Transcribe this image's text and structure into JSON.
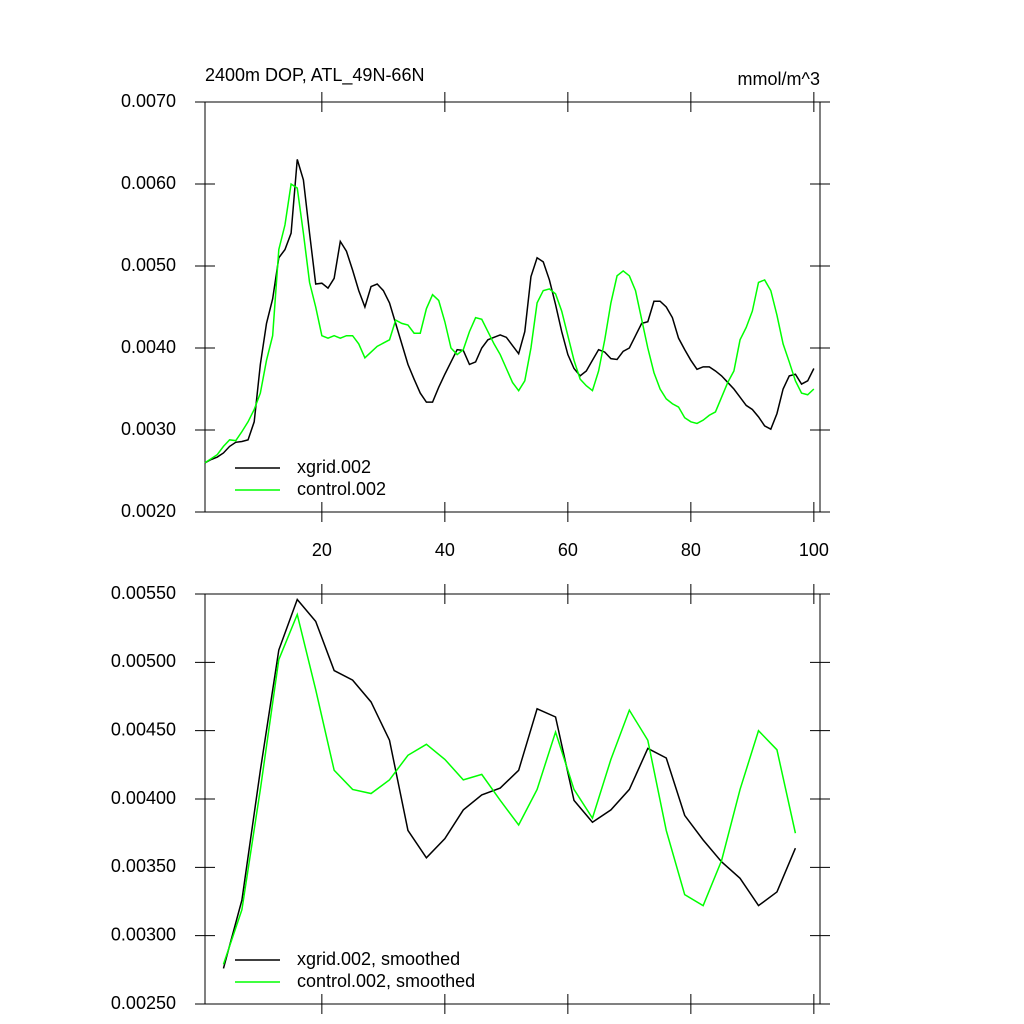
{
  "chart_data": [
    {
      "type": "line",
      "title": "2400m DOP, ATL_49N-66N",
      "units_label": "mmol/m^3",
      "x": [
        1,
        2,
        3,
        4,
        5,
        6,
        7,
        8,
        9,
        10,
        11,
        12,
        13,
        14,
        15,
        16,
        17,
        18,
        19,
        20,
        21,
        22,
        23,
        24,
        25,
        26,
        27,
        28,
        29,
        30,
        31,
        32,
        33,
        34,
        35,
        36,
        37,
        38,
        39,
        40,
        41,
        42,
        43,
        44,
        45,
        46,
        47,
        48,
        49,
        50,
        51,
        52,
        53,
        54,
        55,
        56,
        57,
        58,
        59,
        60,
        61,
        62,
        63,
        64,
        65,
        66,
        67,
        68,
        69,
        70,
        71,
        72,
        73,
        74,
        75,
        76,
        77,
        78,
        79,
        80,
        81,
        82,
        83,
        84,
        85,
        86,
        87,
        88,
        89,
        90,
        91,
        92,
        93,
        94,
        95,
        96,
        97,
        98,
        99,
        100
      ],
      "series": [
        {
          "name": "xgrid.002",
          "color": "#000000",
          "values": [
            0.0026,
            0.00264,
            0.00267,
            0.00272,
            0.0028,
            0.00285,
            0.00286,
            0.00288,
            0.0031,
            0.0038,
            0.0043,
            0.0046,
            0.0051,
            0.0052,
            0.0054,
            0.0063,
            0.00605,
            0.0054,
            0.00478,
            0.00479,
            0.00473,
            0.00485,
            0.0053,
            0.00518,
            0.00495,
            0.0047,
            0.0045,
            0.00475,
            0.00478,
            0.0047,
            0.00455,
            0.0043,
            0.00405,
            0.0038,
            0.00362,
            0.00345,
            0.00334,
            0.00334,
            0.00352,
            0.00368,
            0.00383,
            0.00398,
            0.00397,
            0.0038,
            0.00383,
            0.004,
            0.0041,
            0.00413,
            0.00416,
            0.00413,
            0.00403,
            0.00393,
            0.0042,
            0.00487,
            0.0051,
            0.00505,
            0.00483,
            0.00453,
            0.0042,
            0.00392,
            0.00375,
            0.00366,
            0.00372,
            0.00385,
            0.00398,
            0.00395,
            0.00387,
            0.00386,
            0.00396,
            0.004,
            0.00415,
            0.0043,
            0.00432,
            0.00457,
            0.00457,
            0.0045,
            0.00437,
            0.00412,
            0.00398,
            0.00385,
            0.00374,
            0.00377,
            0.00377,
            0.00372,
            0.00366,
            0.00358,
            0.0035,
            0.0034,
            0.0033,
            0.00325,
            0.00316,
            0.00305,
            0.00301,
            0.0032,
            0.0035,
            0.00366,
            0.00368,
            0.00356,
            0.0036,
            0.00375
          ]
        },
        {
          "name": "control.002",
          "color": "#00ff00",
          "values": [
            0.0026,
            0.00265,
            0.0027,
            0.0028,
            0.00288,
            0.00287,
            0.00298,
            0.0031,
            0.00325,
            0.00345,
            0.00385,
            0.00415,
            0.0052,
            0.0055,
            0.006,
            0.00595,
            0.0054,
            0.0048,
            0.0045,
            0.00415,
            0.00412,
            0.00415,
            0.00412,
            0.00415,
            0.00415,
            0.00405,
            0.00388,
            0.00395,
            0.00402,
            0.00406,
            0.0041,
            0.00434,
            0.0043,
            0.00428,
            0.00418,
            0.00418,
            0.00448,
            0.00465,
            0.00458,
            0.00432,
            0.004,
            0.00392,
            0.00398,
            0.0042,
            0.00437,
            0.00435,
            0.0042,
            0.00405,
            0.00392,
            0.00375,
            0.00358,
            0.00348,
            0.0036,
            0.004,
            0.00455,
            0.0047,
            0.00472,
            0.00466,
            0.00445,
            0.00415,
            0.00385,
            0.00362,
            0.00354,
            0.00348,
            0.00372,
            0.0041,
            0.00455,
            0.00488,
            0.00494,
            0.00488,
            0.0047,
            0.00435,
            0.004,
            0.0037,
            0.0035,
            0.00338,
            0.00332,
            0.00328,
            0.00315,
            0.0031,
            0.00308,
            0.00312,
            0.00318,
            0.00322,
            0.0034,
            0.00358,
            0.00372,
            0.0041,
            0.00425,
            0.00445,
            0.0048,
            0.00483,
            0.0047,
            0.0044,
            0.00405,
            0.00383,
            0.0036,
            0.00345,
            0.00343,
            0.0035
          ]
        }
      ],
      "xlim": [
        1,
        101
      ],
      "xticks": [
        20,
        40,
        60,
        80,
        100
      ],
      "show_xtick_labels": true,
      "ylim": [
        0.002,
        0.007
      ],
      "yticks": [
        {
          "value": 0.002,
          "label": "0.0020"
        },
        {
          "value": 0.003,
          "label": "0.0030"
        },
        {
          "value": 0.004,
          "label": "0.0040"
        },
        {
          "value": 0.005,
          "label": "0.0050"
        },
        {
          "value": 0.006,
          "label": "0.0060"
        },
        {
          "value": 0.007,
          "label": "0.0070"
        }
      ],
      "legend": "lower left"
    },
    {
      "type": "line",
      "x": [
        4,
        7,
        10,
        13,
        16,
        19,
        22,
        25,
        28,
        31,
        34,
        37,
        40,
        43,
        46,
        49,
        52,
        55,
        58,
        61,
        64,
        67,
        70,
        73,
        76,
        79,
        82,
        85,
        88,
        91,
        94,
        97
      ],
      "series": [
        {
          "name": "xgrid.002, smoothed",
          "color": "#000000",
          "values": [
            0.00276,
            0.00326,
            0.00421,
            0.00509,
            0.00546,
            0.0053,
            0.00494,
            0.00487,
            0.00471,
            0.00443,
            0.00377,
            0.00357,
            0.00371,
            0.00392,
            0.00403,
            0.00408,
            0.00421,
            0.00466,
            0.0046,
            0.00399,
            0.00383,
            0.00392,
            0.00407,
            0.00437,
            0.0043,
            0.00388,
            0.0037,
            0.00354,
            0.00342,
            0.00322,
            0.00332,
            0.00364
          ]
        },
        {
          "name": "control.002, smoothed",
          "color": "#00ff00",
          "values": [
            0.00279,
            0.00319,
            0.00407,
            0.00502,
            0.00535,
            0.0048,
            0.00421,
            0.00407,
            0.00404,
            0.00414,
            0.00432,
            0.0044,
            0.00429,
            0.00414,
            0.00418,
            0.00399,
            0.00381,
            0.00407,
            0.00449,
            0.00407,
            0.00386,
            0.00429,
            0.00465,
            0.00443,
            0.00377,
            0.0033,
            0.00322,
            0.00355,
            0.00407,
            0.0045,
            0.00436,
            0.00375
          ]
        }
      ],
      "xlim": [
        1,
        101
      ],
      "xticks": [
        20,
        40,
        60,
        80,
        100
      ],
      "show_xtick_labels": false,
      "ylim": [
        0.0025,
        0.0055
      ],
      "yticks": [
        {
          "value": 0.0025,
          "label": "0.00250"
        },
        {
          "value": 0.003,
          "label": "0.00300"
        },
        {
          "value": 0.0035,
          "label": "0.00350"
        },
        {
          "value": 0.004,
          "label": "0.00400"
        },
        {
          "value": 0.0045,
          "label": "0.00450"
        },
        {
          "value": 0.005,
          "label": "0.00500"
        },
        {
          "value": 0.0055,
          "label": "0.00550"
        }
      ],
      "legend": "lower left"
    }
  ]
}
